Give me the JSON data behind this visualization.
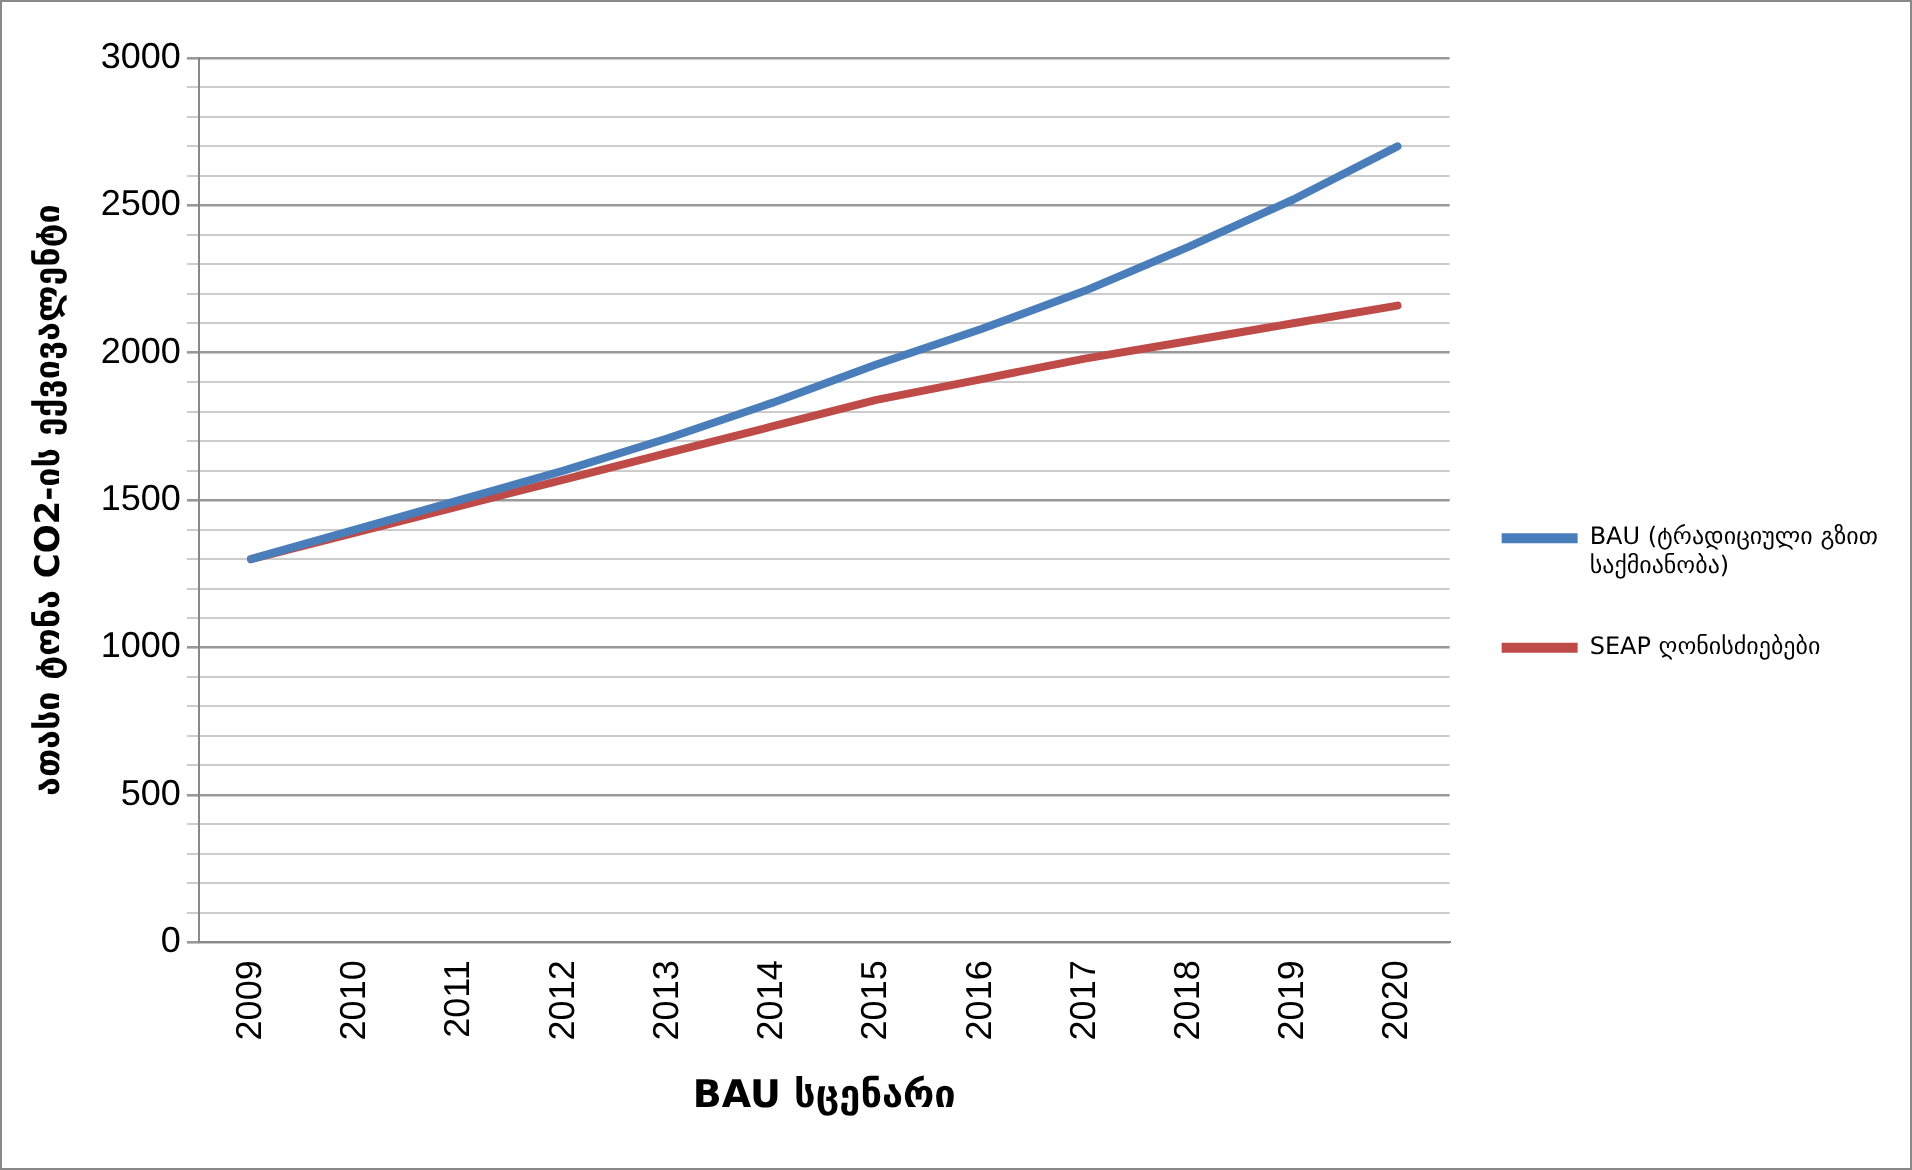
{
  "chart_data": {
    "type": "line",
    "xlabel": "BAU სცენარი",
    "ylabel": "ათასი ტონა CO2-ის ექვივალენტი",
    "categories": [
      "2009",
      "2010",
      "2011",
      "2012",
      "2013",
      "2014",
      "2015",
      "2016",
      "2017",
      "2018",
      "2019",
      "2020"
    ],
    "series": [
      {
        "name": "BAU (ტრადიციული გზით საქმიანობა)",
        "color": "#4a7ebb",
        "values": [
          1300,
          1400,
          1500,
          1600,
          1710,
          1830,
          1960,
          2080,
          2210,
          2360,
          2520,
          2700
        ]
      },
      {
        "name": "SEAP ღონისძიებები",
        "color": "#be4b48",
        "values": [
          1300,
          1390,
          1480,
          1570,
          1660,
          1750,
          1840,
          1910,
          1980,
          2040,
          2100,
          2160
        ]
      }
    ],
    "ylim": [
      0,
      3000
    ],
    "yticks": [
      0,
      {
        "value": 100,
        "label": null
      },
      {
        "value": 200,
        "label": null
      },
      {
        "value": 300,
        "label": null
      },
      {
        "value": 400,
        "label": null
      },
      500,
      {
        "value": 600,
        "label": null
      },
      {
        "value": 700,
        "label": null
      },
      {
        "value": 800,
        "label": null
      },
      {
        "value": 900,
        "label": null
      },
      1000,
      {
        "value": 1100,
        "label": null
      },
      {
        "value": 1200,
        "label": null
      },
      {
        "value": 1300,
        "label": null
      },
      {
        "value": 1400,
        "label": null
      },
      1500,
      {
        "value": 1600,
        "label": null
      },
      {
        "value": 1700,
        "label": null
      },
      {
        "value": 1800,
        "label": null
      },
      {
        "value": 1900,
        "label": null
      },
      2000,
      {
        "value": 2100,
        "label": null
      },
      {
        "value": 2200,
        "label": null
      },
      {
        "value": 2300,
        "label": null
      },
      {
        "value": 2400,
        "label": null
      },
      2500,
      {
        "value": 2600,
        "label": null
      },
      {
        "value": 2700,
        "label": null
      },
      {
        "value": 2800,
        "label": null
      },
      {
        "value": 2900,
        "label": null
      },
      3000
    ],
    "grid": "y",
    "legend": "right",
    "marker": "none",
    "line_style": "solid"
  }
}
